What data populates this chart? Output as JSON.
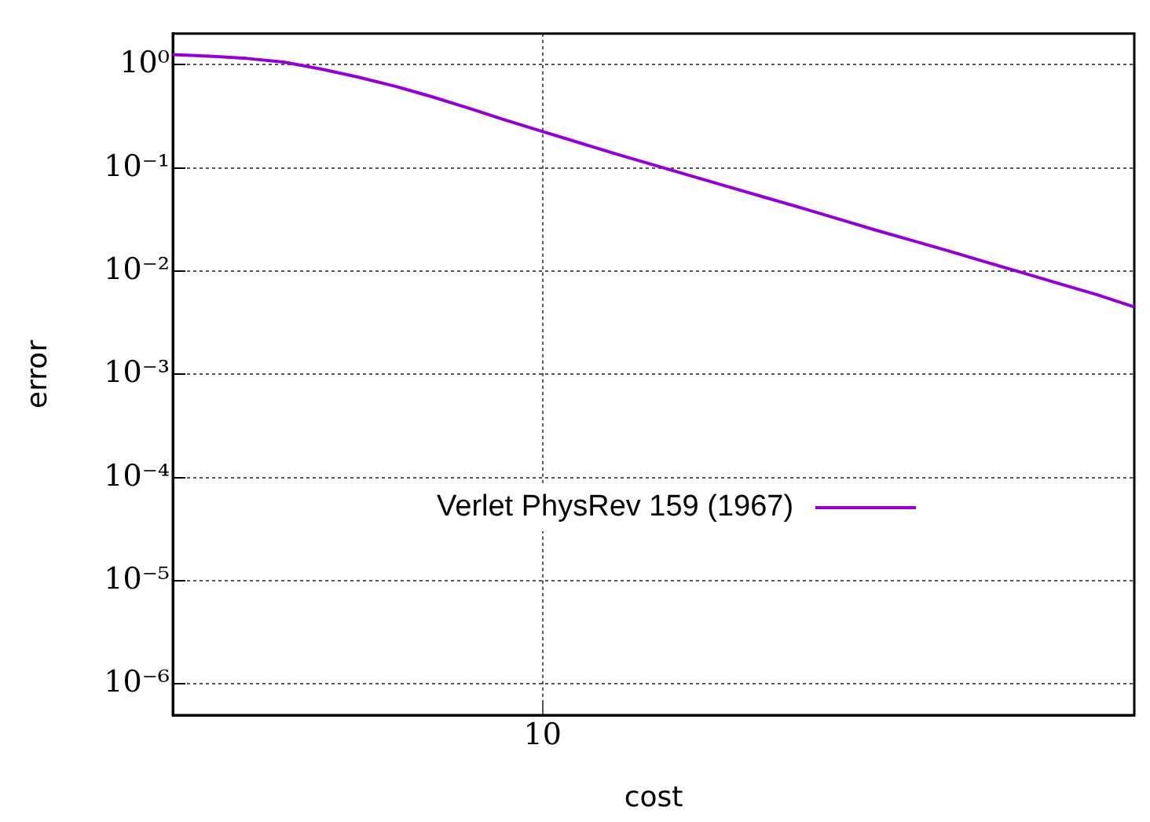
{
  "chart_data": {
    "type": "line",
    "xlabel": "cost",
    "ylabel": "error",
    "log": "y",
    "grid": true,
    "legend": "right",
    "marker": "none",
    "line_style": "solid",
    "ylim": [
      5e-07,
      2
    ],
    "yticks": [
      {
        "value": 1e-06,
        "label": "10⁻⁶"
      },
      {
        "value": 1e-05,
        "label": "10⁻⁵"
      },
      {
        "value": 0.0001,
        "label": "10⁻⁴"
      },
      {
        "value": 0.001,
        "label": "10⁻³"
      },
      {
        "value": 0.01,
        "label": "10⁻²"
      },
      {
        "value": 0.1,
        "label": "10⁻¹"
      },
      {
        "value": 1,
        "label": "10⁰"
      }
    ],
    "categories": [
      null,
      null,
      null,
      null,
      null,
      null,
      null,
      null,
      null,
      null,
      "10",
      null,
      null,
      null,
      null,
      null,
      null,
      null,
      null,
      null,
      null,
      null,
      null,
      null,
      null,
      null,
      null
    ],
    "series": [
      {
        "name": "Verlet PhysRev 159 (1967)",
        "color": "#9400d3",
        "values": [
          1.25,
          1.21,
          1.15,
          1.06,
          0.91,
          0.76,
          0.62,
          0.49,
          0.38,
          0.29,
          0.225,
          0.175,
          0.136,
          0.107,
          0.084,
          0.066,
          0.052,
          0.041,
          0.032,
          0.025,
          0.0198,
          0.0156,
          0.0122,
          0.0096,
          0.0075,
          0.0059,
          0.0045
        ]
      }
    ]
  }
}
